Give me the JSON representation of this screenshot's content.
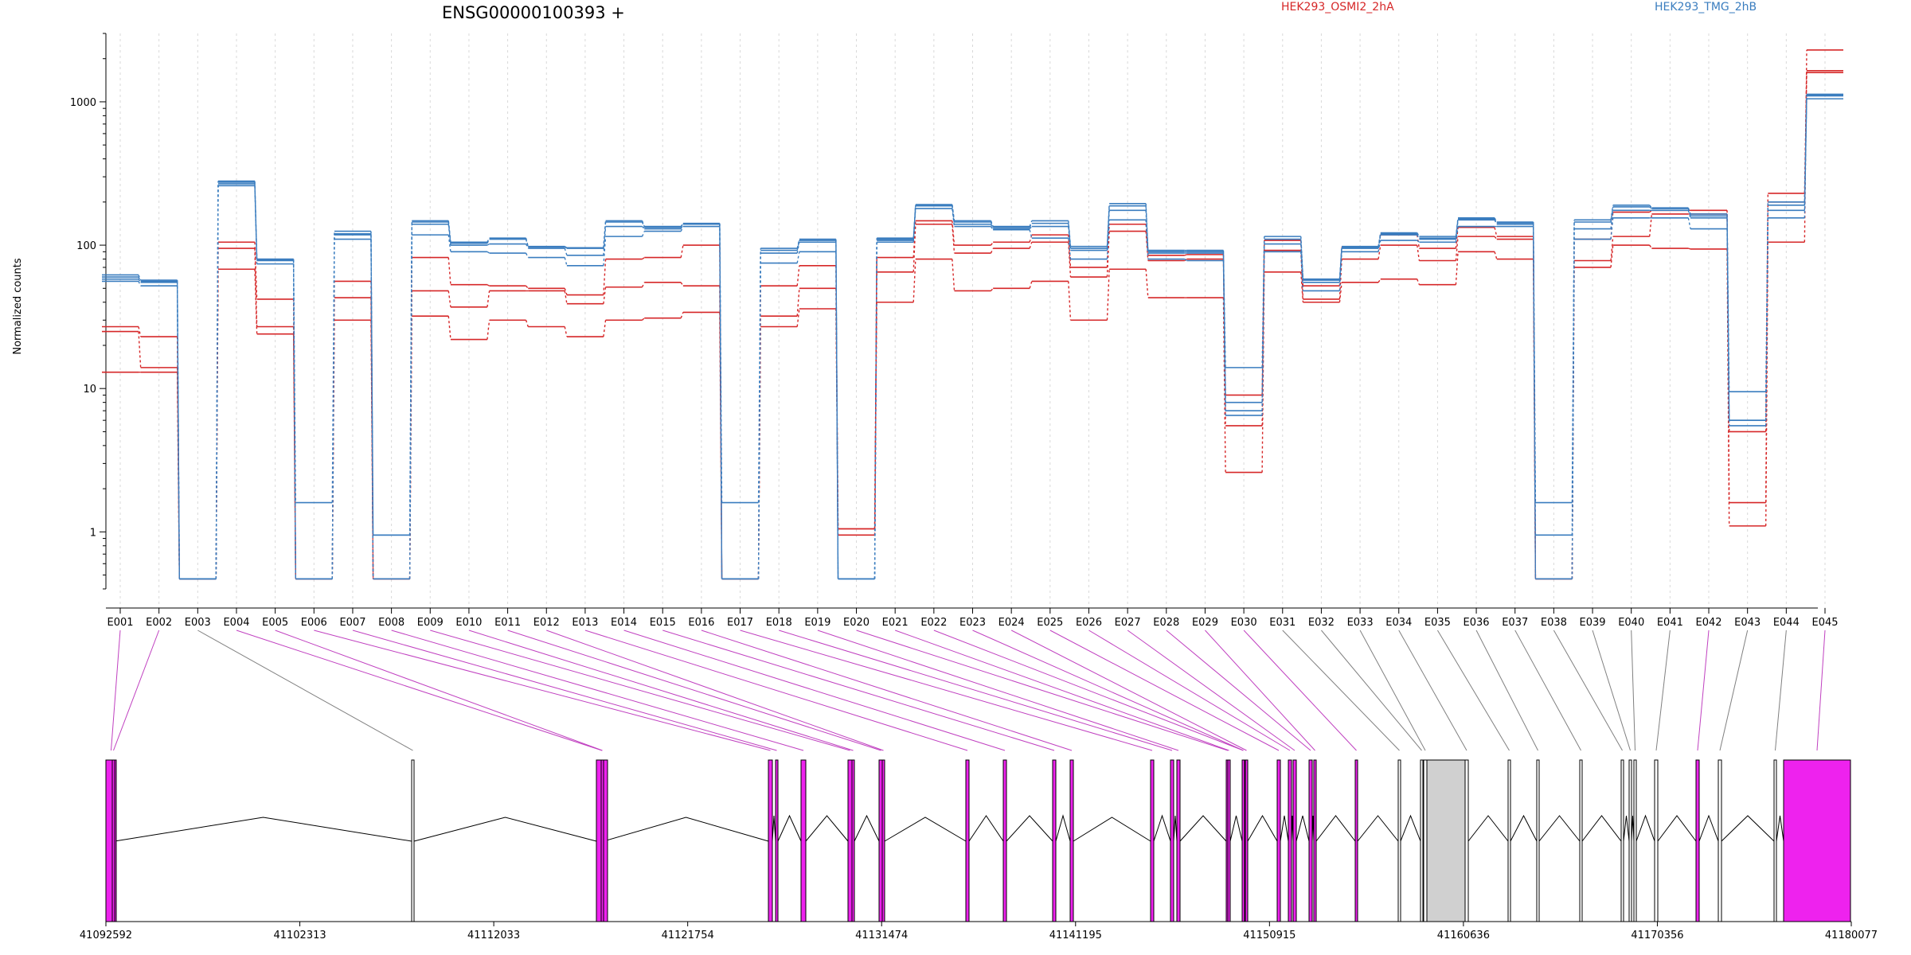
{
  "chart_data": {
    "type": "line",
    "title": "ENSG00000100393 +",
    "ylabel": "Normalized counts",
    "yscale": "log",
    "ylim": [
      0.4,
      3000
    ],
    "yticks": [
      1,
      10,
      100,
      1000
    ],
    "ytick_labels": [
      "1",
      "10",
      "100",
      "1000"
    ],
    "grid": "vertical dashed lines at each exon",
    "legend_placement": "top",
    "categories": [
      "E001",
      "E002",
      "E003",
      "E004",
      "E005",
      "E006",
      "E007",
      "E008",
      "E009",
      "E010",
      "E011",
      "E012",
      "E013",
      "E014",
      "E015",
      "E016",
      "E017",
      "E018",
      "E019",
      "E020",
      "E021",
      "E022",
      "E023",
      "E024",
      "E025",
      "E026",
      "E027",
      "E028",
      "E029",
      "E030",
      "E031",
      "E032",
      "E033",
      "E034",
      "E035",
      "E036",
      "E037",
      "E038",
      "E039",
      "E040",
      "E041",
      "E042",
      "E043",
      "E044",
      "E045"
    ],
    "groups": [
      {
        "name": "HEK293_OSMI2_2hA",
        "color": "#d62728"
      },
      {
        "name": "HEK293_TMG_2hB",
        "color": "#3a7dbf"
      }
    ],
    "series": [
      {
        "group": 0,
        "values": [
          13,
          13,
          0.47,
          68,
          24,
          0.47,
          30,
          0.47,
          32,
          22,
          30,
          27,
          23,
          30,
          31,
          34,
          0.47,
          27,
          36,
          0.95,
          40,
          80,
          48,
          50,
          56,
          30,
          68,
          43,
          43,
          2.6,
          65,
          40,
          55,
          58,
          53,
          90,
          80,
          0.47,
          70,
          100,
          95,
          94,
          1.1,
          105,
          2300
        ]
      },
      {
        "group": 0,
        "values": [
          25,
          14,
          0.47,
          95,
          27,
          0.47,
          43,
          0.47,
          48,
          37,
          48,
          48,
          39,
          51,
          55,
          52,
          0.47,
          32,
          50,
          1.05,
          65,
          140,
          88,
          95,
          105,
          60,
          125,
          78,
          80,
          5.5,
          92,
          42,
          80,
          100,
          78,
          115,
          110,
          0.47,
          78,
          115,
          165,
          165,
          5,
          200,
          1600
        ]
      },
      {
        "group": 0,
        "values": [
          27,
          23,
          0.47,
          105,
          42,
          0.47,
          56,
          0.47,
          82,
          53,
          52,
          50,
          45,
          80,
          82,
          100,
          0.47,
          52,
          72,
          1.05,
          82,
          148,
          100,
          105,
          118,
          70,
          140,
          85,
          86,
          9,
          108,
          52,
          97,
          118,
          95,
          133,
          115,
          0.47,
          110,
          170,
          175,
          175,
          1.6,
          230,
          1650
        ]
      },
      {
        "group": 1,
        "values": [
          56,
          52,
          0.47,
          260,
          74,
          0.47,
          110,
          0.47,
          118,
          90,
          88,
          82,
          72,
          115,
          125,
          135,
          0.47,
          75,
          90,
          0.47,
          105,
          180,
          135,
          128,
          112,
          80,
          150,
          80,
          78,
          6.5,
          90,
          48,
          90,
          108,
          105,
          135,
          135,
          0.47,
          110,
          155,
          155,
          130,
          5.5,
          155,
          1050
        ]
      },
      {
        "group": 1,
        "values": [
          58,
          55,
          0.47,
          268,
          78,
          0.47,
          118,
          0.47,
          140,
          100,
          102,
          95,
          85,
          135,
          130,
          140,
          0.47,
          88,
          105,
          0.47,
          108,
          188,
          140,
          130,
          135,
          92,
          175,
          88,
          88,
          8,
          102,
          55,
          95,
          118,
          110,
          150,
          140,
          0.47,
          130,
          175,
          175,
          155,
          6,
          175,
          1100
        ]
      },
      {
        "group": 1,
        "values": [
          62,
          57,
          0.47,
          280,
          80,
          1.6,
          125,
          0.95,
          148,
          105,
          112,
          98,
          96,
          148,
          135,
          142,
          1.6,
          95,
          110,
          0.47,
          112,
          192,
          148,
          135,
          148,
          98,
          195,
          92,
          92,
          14,
          115,
          58,
          98,
          122,
          115,
          155,
          145,
          1.6,
          150,
          190,
          182,
          165,
          9.5,
          200,
          1130
        ]
      },
      {
        "group": 1,
        "values": [
          60,
          56,
          0.47,
          275,
          79,
          0.47,
          120,
          0.95,
          145,
          103,
          110,
          97,
          95,
          145,
          133,
          141,
          0.47,
          92,
          108,
          0.47,
          110,
          190,
          145,
          133,
          142,
          95,
          188,
          90,
          90,
          7,
          110,
          57,
          96,
          120,
          112,
          152,
          143,
          0.95,
          145,
          185,
          180,
          160,
          6,
          190,
          1110
        ]
      }
    ],
    "genomic_coordinates": [
      "41092592",
      "41102313",
      "41112033",
      "41121754",
      "41131474",
      "41141195",
      "41150915",
      "41160636",
      "41170356",
      "41180077"
    ],
    "gene_model": {
      "highlight_color": "#ee22ee",
      "neutral_color": "#d0d0d0",
      "highlighted_exons": [
        "E001",
        "E002",
        "E004",
        "E005",
        "E006",
        "E007",
        "E008",
        "E009",
        "E010",
        "E011",
        "E012",
        "E013",
        "E014",
        "E015",
        "E016",
        "E017",
        "E018",
        "E019",
        "E020",
        "E021",
        "E022",
        "E023",
        "E024",
        "E025",
        "E026",
        "E027",
        "E028",
        "E029",
        "E030",
        "E042",
        "E045"
      ]
    }
  }
}
